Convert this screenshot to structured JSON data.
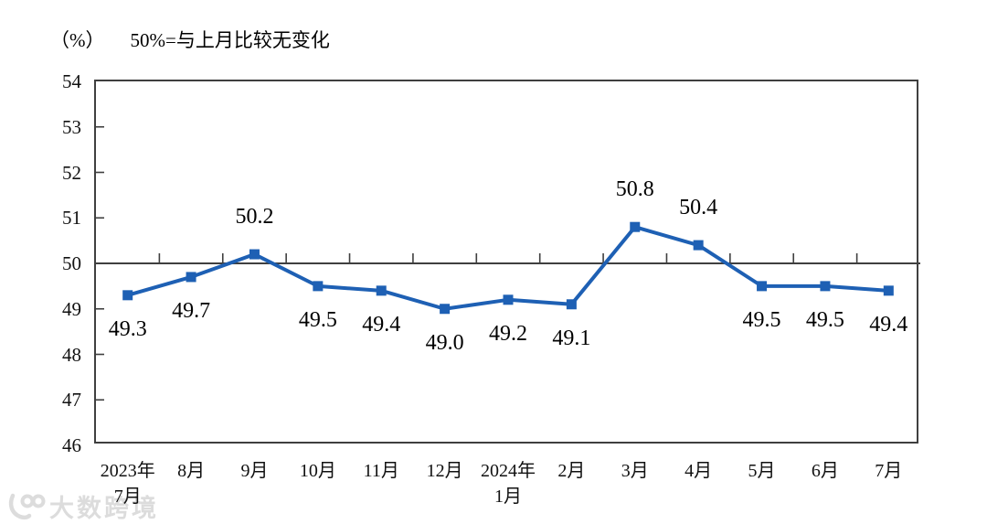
{
  "header": {
    "unit_label": "（%）",
    "subtitle": "50%=与上月比较无变化"
  },
  "watermark": {
    "logo": "dashu-kuajing-logo",
    "text": "大数跨境"
  },
  "chart_data": {
    "type": "line",
    "title": "50%=与上月比较无变化",
    "unit": "%",
    "categories": [
      [
        "2023年",
        "7月"
      ],
      [
        "8月"
      ],
      [
        "9月"
      ],
      [
        "10月"
      ],
      [
        "11月"
      ],
      [
        "12月"
      ],
      [
        "2024年",
        "1月"
      ],
      [
        "2月"
      ],
      [
        "3月"
      ],
      [
        "4月"
      ],
      [
        "5月"
      ],
      [
        "6月"
      ],
      [
        "7月"
      ]
    ],
    "values": [
      49.3,
      49.7,
      50.2,
      49.5,
      49.4,
      49.0,
      49.2,
      49.1,
      50.8,
      50.4,
      49.5,
      49.5,
      49.4
    ],
    "point_labels": [
      "49.3",
      "49.7",
      "50.2",
      "49.5",
      "49.4",
      "49.0",
      "49.2",
      "49.1",
      "50.8",
      "50.4",
      "49.5",
      "49.5",
      "49.4"
    ],
    "label_side": [
      "below",
      "below",
      "above",
      "below",
      "below",
      "below",
      "below",
      "below",
      "above",
      "above",
      "below",
      "below",
      "below"
    ],
    "yticks": [
      46,
      47,
      48,
      49,
      50,
      51,
      52,
      53,
      54
    ],
    "ylim": [
      46,
      54
    ],
    "reference_line": 50,
    "xlabel": "",
    "ylabel": "%",
    "grid": false,
    "legend": "none",
    "line_color": "#1E60B4",
    "axis_color": "#3F3F3F",
    "marker": "square"
  }
}
